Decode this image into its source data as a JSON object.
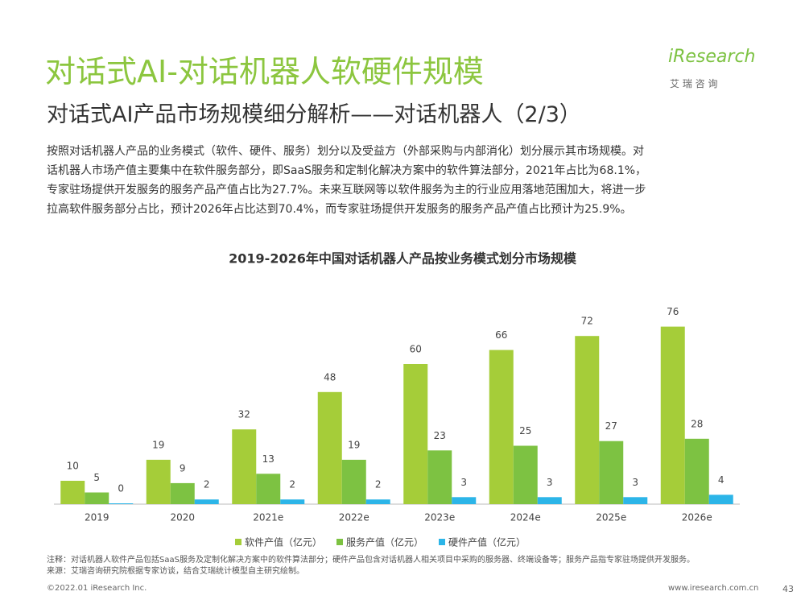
{
  "header": {
    "title": "对话式AI-对话机器人软硬件规模",
    "subtitle": "对话式AI产品市场规模细分解析——对话机器人（2/3）",
    "logo": "iResearch",
    "logo_cn": "艾 瑞 咨 询"
  },
  "paragraph": [
    "按照对话机器人产品的业务模式（软件、硬件、服务）划分以及受益方（外部采购与内部消化）划分展示其市场规模。对",
    "话机器人市场产值主要集中在软件服务部分，即SaaS服务和定制化解决方案中的软件算法部分，2021年占比为68.1%，",
    "专家驻场提供开发服务的服务产品产值占比为27.7%。未来互联网等以软件服务为主的行业应用落地范围加大，将进一步",
    "拉高软件服务部分占比，预计2026年占比达到70.4%，而专家驻场提供开发服务的服务产品产值占比预计为25.9%。"
  ],
  "chart_data": {
    "type": "bar",
    "title": "2019-2026年中国对话机器人产品按业务模式划分市场规模",
    "categories": [
      "2019",
      "2020",
      "2021e",
      "2022e",
      "2023e",
      "2024e",
      "2025e",
      "2026e"
    ],
    "series": [
      {
        "name": "软件产值（亿元）",
        "color": "#a5cd39",
        "values": [
          10,
          19,
          32,
          48,
          60,
          66,
          72,
          76
        ]
      },
      {
        "name": "服务产值（亿元）",
        "color": "#7dc242",
        "values": [
          5,
          9,
          13,
          19,
          23,
          25,
          27,
          28
        ]
      },
      {
        "name": "硬件产值（亿元）",
        "color": "#2cb5e8",
        "values": [
          0,
          2,
          2,
          2,
          3,
          3,
          3,
          4
        ]
      }
    ]
  },
  "notes": [
    "注释：对话机器人软件产品包括SaaS服务及定制化解决方案中的软件算法部分；硬件产品包含对话机器人相关项目中采购的服务器、终端设备等；服务产品指专家驻场提供开发服务。",
    "来源：艾瑞咨询研究院根据专家访谈，结合艾瑞统计模型自主研究绘制。"
  ],
  "footer": {
    "copyright": "©2022.01 iResearch Inc.",
    "url": "www.iresearch.com.cn",
    "page": "43"
  }
}
